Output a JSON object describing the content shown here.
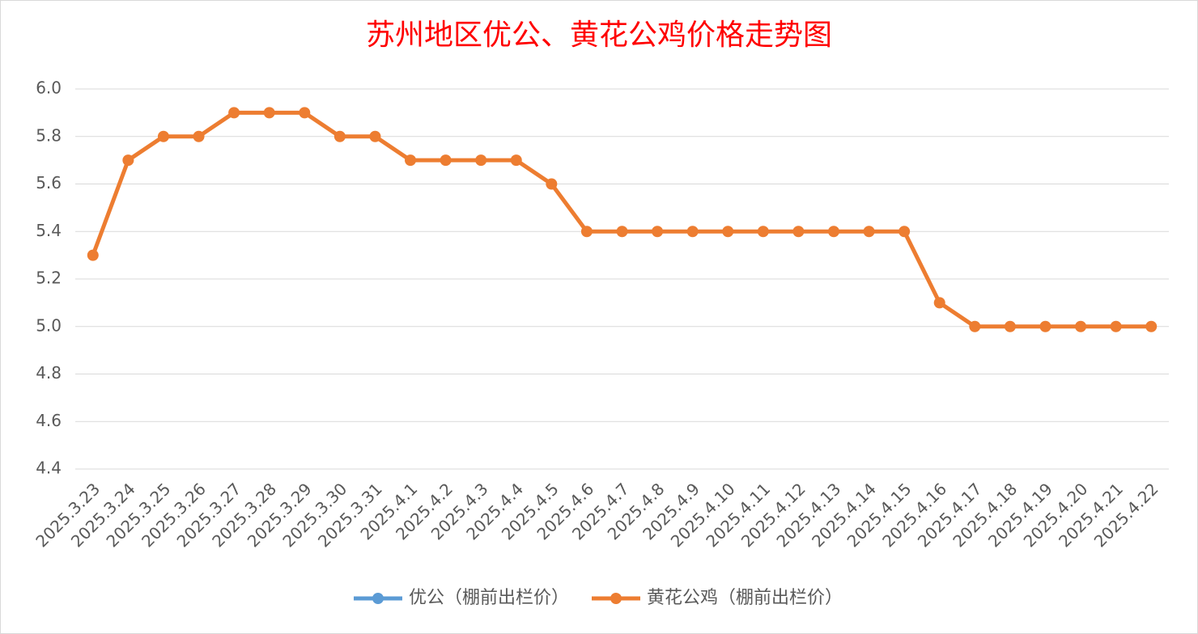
{
  "chart_data": {
    "type": "line",
    "title": "苏州地区优公、黄花公鸡价格走势图",
    "categories": [
      "2025.3.23",
      "2025.3.24",
      "2025.3.25",
      "2025.3.26",
      "2025.3.27",
      "2025.3.28",
      "2025.3.29",
      "2025.3.30",
      "2025.3.31",
      "2025.4.1",
      "2025.4.2",
      "2025.4.3",
      "2025.4.4",
      "2025.4.5",
      "2025.4.6",
      "2025.4.7",
      "2025.4.8",
      "2025.4.9",
      "2025.4.10",
      "2025.4.11",
      "2025.4.12",
      "2025.4.13",
      "2025.4.14",
      "2025.4.15",
      "2025.4.16",
      "2025.4.17",
      "2025.4.18",
      "2025.4.19",
      "2025.4.20",
      "2025.4.21",
      "2025.4.22"
    ],
    "series": [
      {
        "name": "优公（棚前出栏价）",
        "color": "#5b9bd5",
        "values": [
          null,
          null,
          null,
          null,
          null,
          null,
          null,
          null,
          null,
          null,
          null,
          null,
          null,
          null,
          null,
          null,
          null,
          null,
          null,
          null,
          null,
          null,
          null,
          null,
          null,
          null,
          null,
          null,
          null,
          null,
          null
        ]
      },
      {
        "name": "黄花公鸡（棚前出栏价）",
        "color": "#ed7d31",
        "values": [
          5.3,
          5.7,
          5.8,
          5.8,
          5.9,
          5.9,
          5.9,
          5.8,
          5.8,
          5.7,
          5.7,
          5.7,
          5.7,
          5.6,
          5.4,
          5.4,
          5.4,
          5.4,
          5.4,
          5.4,
          5.4,
          5.4,
          5.4,
          5.4,
          5.1,
          5.0,
          5.0,
          5.0,
          5.0,
          5.0,
          5.0
        ]
      }
    ],
    "ylim": [
      4.4,
      6.0
    ],
    "yticks": [
      4.4,
      4.6,
      4.8,
      {
        "value": 5.0,
        "label": "5.0"
      },
      5.2,
      5.4,
      5.6,
      5.8,
      {
        "value": 6.0,
        "label": "6.0"
      }
    ],
    "grid": true,
    "legend": "bottom"
  }
}
